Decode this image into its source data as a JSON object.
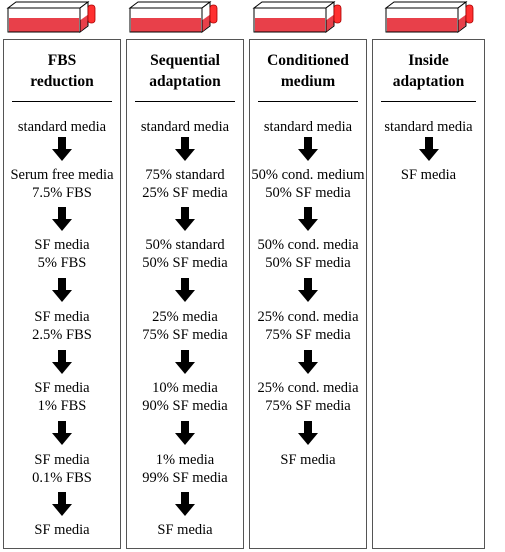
{
  "colors": {
    "flask_medium": "#e8404a",
    "flask_cap": "#ff3030",
    "border": "#555555",
    "text": "#000000"
  },
  "columns": [
    {
      "title_line1": "FBS",
      "title_line2": "reduction",
      "steps": [
        [
          "standard media"
        ],
        [
          "Serum free media",
          "7.5% FBS"
        ],
        [
          "SF media",
          "5% FBS"
        ],
        [
          "SF media",
          "2.5% FBS"
        ],
        [
          "SF media",
          "1% FBS"
        ],
        [
          "SF media",
          "0.1% FBS"
        ],
        [
          "SF media"
        ]
      ]
    },
    {
      "title_line1": "Sequential",
      "title_line2": "adaptation",
      "steps": [
        [
          "standard media"
        ],
        [
          "75% standard",
          "25% SF media"
        ],
        [
          "50% standard",
          "50% SF media"
        ],
        [
          "25%  media",
          "75% SF media"
        ],
        [
          "10%  media",
          "90% SF media"
        ],
        [
          "1%  media",
          "99% SF media"
        ],
        [
          "SF media"
        ]
      ]
    },
    {
      "title_line1": "Conditioned",
      "title_line2": "medium",
      "steps": [
        [
          "standard media"
        ],
        [
          "50% cond. medium",
          "50% SF media"
        ],
        [
          "50% cond. media",
          "50% SF media"
        ],
        [
          "25% cond. media",
          "75% SF media"
        ],
        [
          "25% cond. media",
          "75% SF media"
        ],
        [
          "SF media"
        ]
      ]
    },
    {
      "title_line1": "Inside",
      "title_line2": "adaptation",
      "steps": [
        [
          "standard media"
        ],
        [
          "SF media"
        ]
      ]
    }
  ]
}
